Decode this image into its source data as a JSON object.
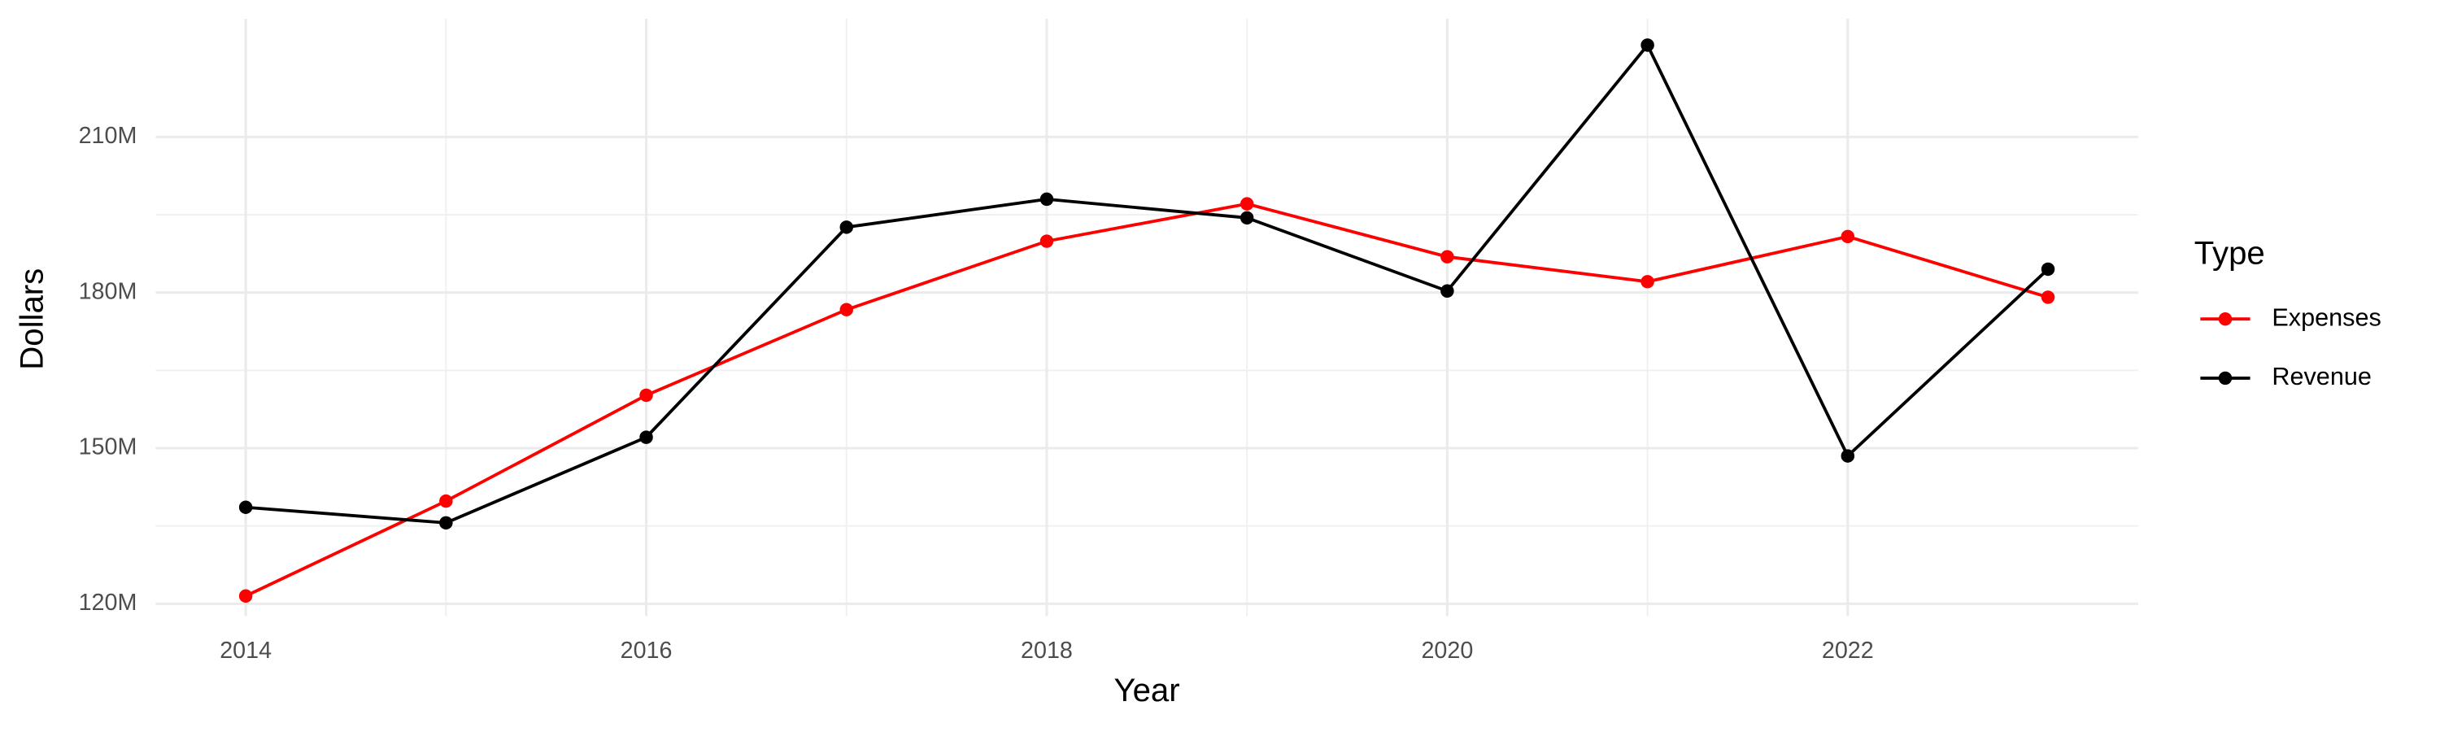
{
  "chart_data": {
    "type": "line",
    "x_label": "Year",
    "y_label": "Dollars",
    "legend_title": "Type",
    "legend_position": "right",
    "x": [
      2014,
      2015,
      2016,
      2017,
      2018,
      2019,
      2020,
      2021,
      2022,
      2023
    ],
    "series": [
      {
        "name": "Expenses",
        "color": "#ff0000",
        "values": [
          121500000,
          139800000,
          160200000,
          176700000,
          189900000,
          197100000,
          186900000,
          182100000,
          190800000,
          179100000
        ]
      },
      {
        "name": "Revenue",
        "color": "#000000",
        "values": [
          138600000,
          135600000,
          152100000,
          192600000,
          198000000,
          194400000,
          180300000,
          227700000,
          148500000,
          184500000
        ]
      }
    ],
    "xlim": [
      2013.55,
      2023.45
    ],
    "ylim": [
      117600000,
      232800000
    ],
    "xticks": [
      2014,
      2016,
      2018,
      2020,
      2022
    ],
    "yticks": [
      {
        "value": 120000000,
        "label": "120M"
      },
      {
        "value": 150000000,
        "label": "150M"
      },
      {
        "value": 180000000,
        "label": "180M"
      },
      {
        "value": 210000000,
        "label": "210M"
      }
    ],
    "grid": true,
    "minor_grid": true
  }
}
